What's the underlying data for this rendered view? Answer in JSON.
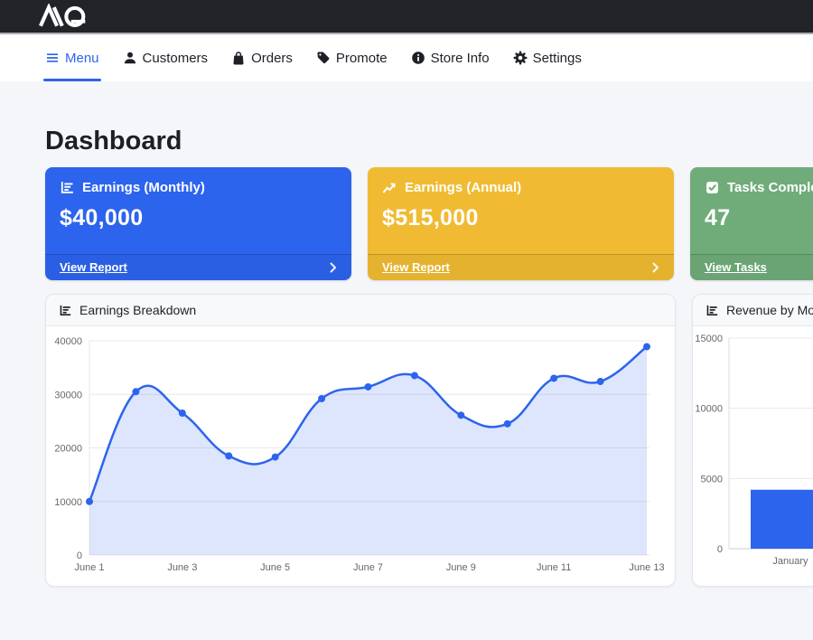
{
  "topbar": {
    "brand_alt": "AQ"
  },
  "nav": {
    "active_color": "#2d64ee",
    "items": [
      {
        "label": "Menu",
        "icon": "hamburger-icon",
        "active": true
      },
      {
        "label": "Customers",
        "icon": "person-icon",
        "active": false
      },
      {
        "label": "Orders",
        "icon": "shopping-bag-icon",
        "active": false
      },
      {
        "label": "Promote",
        "icon": "tag-icon",
        "active": false
      },
      {
        "label": "Store Info",
        "icon": "info-circle-icon",
        "active": false
      },
      {
        "label": "Settings",
        "icon": "gear-icon",
        "active": false
      }
    ]
  },
  "page": {
    "title": "Dashboard"
  },
  "stat_cards": [
    {
      "title": "Earnings (Monthly)",
      "value": "$40,000",
      "link_label": "View Report",
      "color": "#2d64ee",
      "icon": "bar-chart-icon"
    },
    {
      "title": "Earnings (Annual)",
      "value": "$515,000",
      "link_label": "View Report",
      "color": "#f0bb33",
      "icon": "line-chart-icon"
    },
    {
      "title": "Tasks Completed",
      "value": "47",
      "link_label": "View Tasks",
      "color": "#70ac7a",
      "icon": "check-square-icon"
    }
  ],
  "chart_data": [
    {
      "type": "area",
      "title": "Earnings Breakdown",
      "categories": [
        "June 1",
        "June 2",
        "June 3",
        "June 4",
        "June 5",
        "June 6",
        "June 7",
        "June 8",
        "June 9",
        "June 10",
        "June 11",
        "June 12",
        "June 13"
      ],
      "values": [
        10000,
        30500,
        26500,
        18500,
        18300,
        29200,
        31400,
        33500,
        26100,
        24500,
        33000,
        32400,
        38900
      ],
      "xlabel": "",
      "ylabel": "",
      "ylim": [
        0,
        40000
      ],
      "yticks": [
        0,
        10000,
        20000,
        30000,
        40000
      ],
      "xtick_step": 2,
      "grid": "horizontal-only",
      "legend": false,
      "colors": {
        "line": "#2d64ee",
        "fill": "rgba(45,100,238,0.16)",
        "point": "#2d64ee"
      }
    },
    {
      "type": "bar",
      "title": "Revenue by Month",
      "categories": [
        "January"
      ],
      "values": [
        4200
      ],
      "xlabel": "",
      "ylabel": "",
      "ylim": [
        0,
        15000
      ],
      "yticks": [
        0,
        5000,
        10000,
        15000
      ],
      "grid": "horizontal-only",
      "legend": false,
      "colors": {
        "bar": "#2d64ee"
      }
    }
  ]
}
